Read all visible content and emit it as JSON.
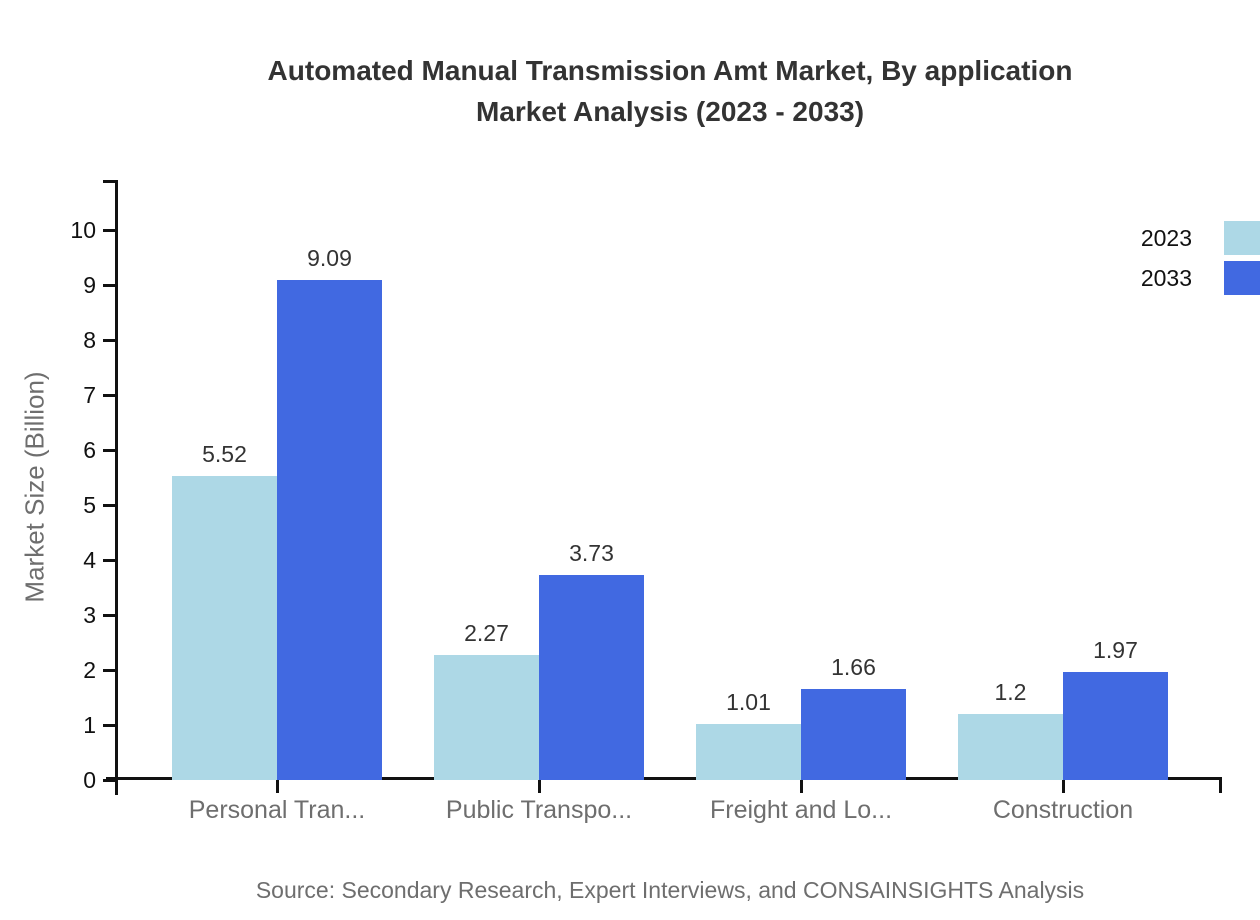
{
  "title": {
    "line1": "Automated Manual Transmission Amt Market, By application",
    "line2": "Market Analysis (2023 - 2033)"
  },
  "source": "Source: Secondary Research, Expert Interviews, and CONSAINSIGHTS Analysis",
  "legend": {
    "items": [
      {
        "label": "2023",
        "color": "#add8e6"
      },
      {
        "label": "2033",
        "color": "#4169e1"
      }
    ]
  },
  "chart_data": {
    "type": "bar",
    "title": "Automated Manual Transmission Amt Market, By application Market Analysis (2023 - 2033)",
    "categories": [
      "Personal Tran...",
      "Public Transpo...",
      "Freight and Lo...",
      "Construction"
    ],
    "series": [
      {
        "name": "2023",
        "color": "#add8e6",
        "values": [
          5.52,
          2.27,
          1.01,
          1.2
        ],
        "labels": [
          "5.52",
          "2.27",
          "1.01",
          "1.2"
        ]
      },
      {
        "name": "2033",
        "color": "#4169e1",
        "values": [
          9.09,
          3.73,
          1.66,
          1.97
        ],
        "labels": [
          "9.09",
          "3.73",
          "1.66",
          "1.97"
        ]
      }
    ],
    "xlabel": "",
    "ylabel": "Market Size (Billion)",
    "ylim": [
      0,
      10.9
    ],
    "yticks": [
      0,
      1,
      2,
      3,
      4,
      5,
      6,
      7,
      8,
      9,
      10
    ],
    "grid": false,
    "legend_position": "top-right",
    "value_labels_shown": true
  },
  "colors": {
    "axis": "#111111",
    "title_text": "#333333",
    "muted_text": "#6e6e6e",
    "background": "#ffffff"
  }
}
